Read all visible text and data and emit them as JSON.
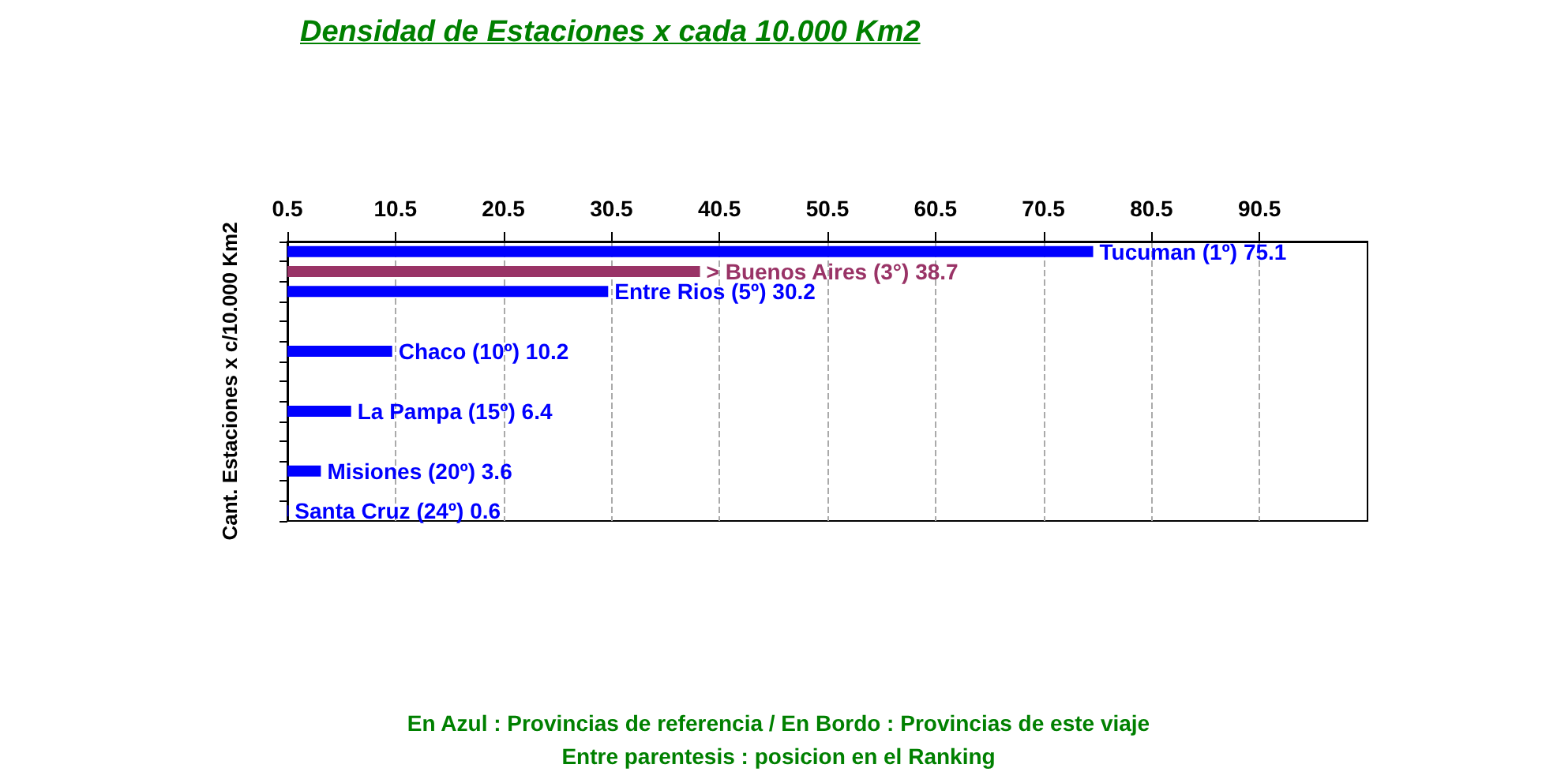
{
  "chart_data": {
    "type": "bar",
    "orientation": "horizontal",
    "title": "Densidad de Estaciones x cada 10.000 Km2",
    "ylabel": "Cant. Estaciones x c/10.000 Km2",
    "categories": [
      null,
      null,
      null,
      null,
      null,
      null,
      null,
      null,
      null,
      null,
      null,
      null,
      null,
      null
    ],
    "values": [
      75.1,
      38.7,
      30.2,
      null,
      null,
      10.2,
      null,
      null,
      6.4,
      null,
      null,
      3.6,
      null,
      0.6
    ],
    "colors": [
      "#0000ff",
      "#993366",
      "#0000ff",
      null,
      null,
      "#0000ff",
      null,
      null,
      "#0000ff",
      null,
      null,
      "#0000ff",
      null,
      "#0000ff"
    ],
    "value_labels": [
      "Tucuman (1º) 75.1",
      "> Buenos Aires (3°) 38.7",
      "Entre Rios (5º) 30.2",
      null,
      null,
      "Chaco (10º) 10.2",
      null,
      null,
      "La Pampa (15º) 6.4",
      null,
      null,
      "Misiones (20º) 3.6",
      null,
      "Santa Cruz (24º) 0.6"
    ],
    "xlim": [
      0.5,
      100.5
    ],
    "xticks": [
      0.5,
      10.5,
      20.5,
      30.5,
      40.5,
      50.5,
      60.5,
      70.5,
      80.5,
      90.5
    ],
    "grid": "x",
    "tick_labels": "x",
    "annotations": [
      "En Azul : Provincias de referencia / En Bordo : Provincias de este viaje",
      "Entre parentesis : posicion en el Ranking"
    ]
  }
}
